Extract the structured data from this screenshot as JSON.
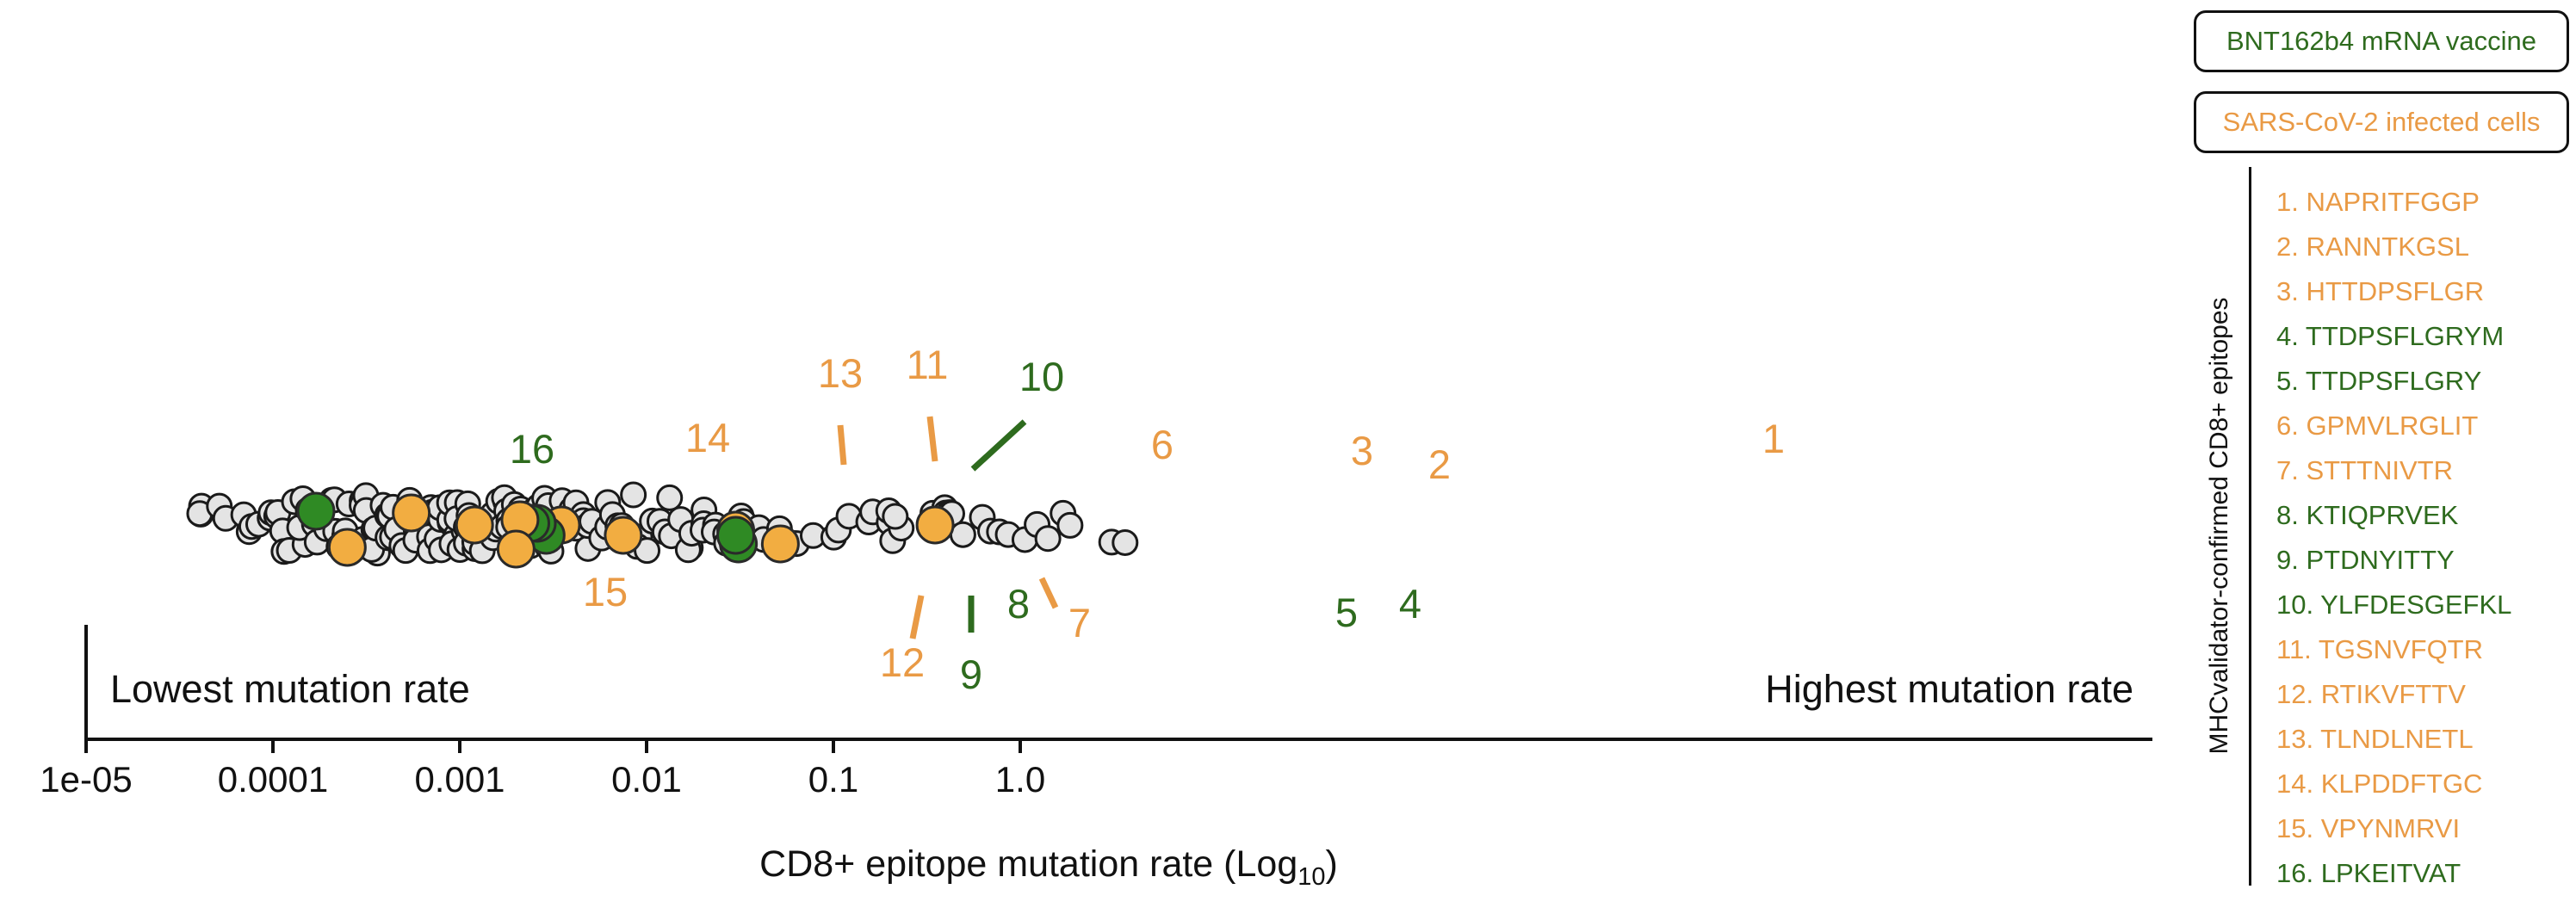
{
  "colors": {
    "vaccine": "#2e6b1e",
    "vaccine_fill": "#2f8a24",
    "infected": "#e99a45",
    "infected_fill": "#f2ad41",
    "background_point_fill": "#e4e4e4",
    "axis": "#111111"
  },
  "legend": {
    "vaccine_label": "BNT162b4 mRNA vaccine",
    "infected_label": "SARS-CoV-2 infected cells"
  },
  "epitope_panel_label": "MHCvalidator-confirmed CD8+ epitopes",
  "epitopes": [
    {
      "label": "1. NAPRITFGGP",
      "group": "infected"
    },
    {
      "label": "2. RANNTKGSL",
      "group": "infected"
    },
    {
      "label": "3. HTTDPSFLGR",
      "group": "infected"
    },
    {
      "label": "4. TTDPSFLGRYM",
      "group": "vaccine"
    },
    {
      "label": "5. TTDPSFLGRY",
      "group": "vaccine"
    },
    {
      "label": "6. GPMVLRGLIT",
      "group": "infected"
    },
    {
      "label": "7. STTTNIVTR",
      "group": "infected"
    },
    {
      "label": "8. KTIQPRVEK",
      "group": "vaccine"
    },
    {
      "label": "9. PTDNYITTY",
      "group": "vaccine"
    },
    {
      "label": "10. YLFDESGEFKL",
      "group": "vaccine"
    },
    {
      "label": "11. TGSNVFQTR",
      "group": "infected"
    },
    {
      "label": "12. RTIKVFTTV",
      "group": "infected"
    },
    {
      "label": "13. TLNDLNETL",
      "group": "infected"
    },
    {
      "label": "14. KLPDDFTGC",
      "group": "infected"
    },
    {
      "label": "15. VPYNMRVI",
      "group": "infected"
    },
    {
      "label": "16. LPKEITVAT",
      "group": "vaccine"
    }
  ],
  "chart_data": {
    "type": "scatter",
    "xlabel_main": "CD8+ epitope mutation rate (Log",
    "xlabel_sub": "10",
    "xlabel_close": ")",
    "xscale": "log",
    "xlim": [
      1e-05,
      3.8
    ],
    "xticks": [
      1e-05,
      0.0001,
      0.001,
      0.01,
      0.1,
      1.0
    ],
    "xtick_labels": [
      "1e-05",
      "0.0001",
      "0.001",
      "0.01",
      "0.1",
      "1.0"
    ],
    "annotation_left": "Lowest mutation rate",
    "annotation_right": "Highest mutation rate",
    "highlighted": [
      {
        "id": "1",
        "x": 0.35,
        "group": "infected",
        "label_side": "above"
      },
      {
        "id": "2",
        "x": 0.052,
        "group": "infected",
        "label_side": "above"
      },
      {
        "id": "3",
        "x": 0.03,
        "group": "infected",
        "label_side": "above"
      },
      {
        "id": "4",
        "x": 0.031,
        "group": "vaccine",
        "label_side": "below"
      },
      {
        "id": "5",
        "x": 0.03,
        "group": "vaccine",
        "label_side": "below"
      },
      {
        "id": "6",
        "x": 0.0075,
        "group": "infected",
        "label_side": "above"
      },
      {
        "id": "7",
        "x": 0.0035,
        "group": "infected",
        "label_side": "below"
      },
      {
        "id": "8",
        "x": 0.0029,
        "group": "vaccine",
        "label_side": "below"
      },
      {
        "id": "9",
        "x": 0.0026,
        "group": "vaccine",
        "label_side": "below"
      },
      {
        "id": "10",
        "x": 0.0024,
        "group": "vaccine",
        "label_side": "above"
      },
      {
        "id": "11",
        "x": 0.0021,
        "group": "infected",
        "label_side": "above"
      },
      {
        "id": "12",
        "x": 0.002,
        "group": "infected",
        "label_side": "below"
      },
      {
        "id": "13",
        "x": 0.0012,
        "group": "infected",
        "label_side": "above"
      },
      {
        "id": "14",
        "x": 0.00055,
        "group": "infected",
        "label_side": "above"
      },
      {
        "id": "15",
        "x": 0.00025,
        "group": "infected",
        "label_side": "below"
      },
      {
        "id": "16",
        "x": 0.00017,
        "group": "vaccine",
        "label_side": "above"
      }
    ],
    "background_points_x": [
      4.2e-05,
      4.2e-05,
      4.2e-05,
      5e-05,
      6e-05,
      6.8e-05,
      7.5e-05,
      8e-05,
      8.5e-05,
      9e-05,
      0.0001,
      0.0001,
      0.000105,
      0.00011,
      0.00012,
      0.00012,
      0.00013,
      0.00014,
      0.00014,
      0.00015,
      0.00016,
      0.00017,
      0.00018,
      0.00019,
      0.0002,
      0.00021,
      0.00022,
      0.00023,
      0.00024,
      0.00025,
      0.00026,
      0.00027,
      0.00028,
      0.00029,
      0.0003,
      0.00031,
      0.00032,
      0.00033,
      0.00034,
      0.00035,
      0.00036,
      0.00037,
      0.00038,
      0.00039,
      0.0004,
      0.00042,
      0.00044,
      0.00046,
      0.00048,
      0.0005,
      0.00052,
      0.00054,
      0.00056,
      0.00058,
      0.0006,
      0.00062,
      0.00064,
      0.00066,
      0.00068,
      0.0007,
      0.00072,
      0.00074,
      0.00076,
      0.00078,
      0.0008,
      0.00082,
      0.00084,
      0.00086,
      0.00088,
      0.0009,
      0.00092,
      0.00094,
      0.00096,
      0.00098,
      0.001,
      0.00103,
      0.00106,
      0.00109,
      0.00112,
      0.00115,
      0.00118,
      0.00121,
      0.00124,
      0.00127,
      0.0013,
      0.00134,
      0.00138,
      0.00142,
      0.00146,
      0.0015,
      0.00155,
      0.0016,
      0.00165,
      0.0017,
      0.00175,
      0.0018,
      0.00185,
      0.0019,
      0.00195,
      0.002,
      0.00205,
      0.0021,
      0.00215,
      0.0022,
      0.00225,
      0.0023,
      0.0024,
      0.0025,
      0.0026,
      0.0027,
      0.0028,
      0.0029,
      0.003,
      0.0031,
      0.0032,
      0.0033,
      0.0034,
      0.0036,
      0.0038,
      0.004,
      0.0042,
      0.0044,
      0.0046,
      0.0048,
      0.005,
      0.0053,
      0.0056,
      0.006,
      0.0064,
      0.0068,
      0.0072,
      0.0076,
      0.008,
      0.0085,
      0.009,
      0.0095,
      0.01,
      0.0105,
      0.011,
      0.012,
      0.013,
      0.014,
      0.015,
      0.016,
      0.017,
      0.018,
      0.019,
      0.02,
      0.021,
      0.022,
      0.024,
      0.026,
      0.028,
      0.029,
      0.03,
      0.032,
      0.035,
      0.04,
      0.045,
      0.055,
      0.06,
      0.065,
      0.075,
      0.1,
      0.11,
      0.12,
      0.15,
      0.17,
      0.19,
      0.2,
      0.21,
      0.22,
      0.23,
      0.35,
      0.37,
      0.38,
      0.4,
      0.42,
      0.45,
      0.5,
      0.6,
      0.7,
      0.8,
      0.9,
      1.0,
      1.3,
      1.5,
      1.6,
      1.9,
      3.0,
      3.5
    ]
  }
}
